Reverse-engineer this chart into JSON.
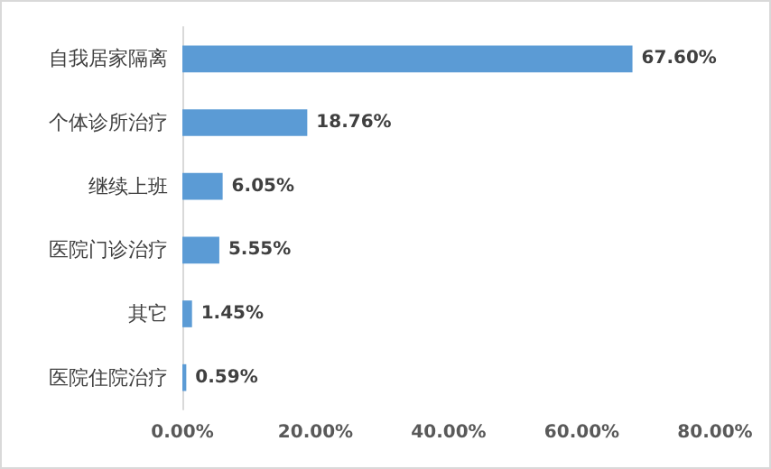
{
  "chart_data": {
    "type": "bar",
    "orientation": "horizontal",
    "categories": [
      "自我居家隔离",
      "个体诊所治疗",
      "继续上班",
      "医院门诊治疗",
      "其它",
      "医院住院治疗"
    ],
    "values": [
      67.6,
      18.76,
      6.05,
      5.55,
      1.45,
      0.59
    ],
    "value_labels": [
      "67.60%",
      "18.76%",
      "6.05%",
      "5.55%",
      "1.45%",
      "0.59%"
    ],
    "color": "#5b9bd5",
    "xlim": [
      0,
      80
    ],
    "xticks": [
      {
        "value": 0,
        "label": "0.00%"
      },
      {
        "value": 20,
        "label": "20.00%"
      },
      {
        "value": 40,
        "label": "40.00%"
      },
      {
        "value": 60,
        "label": "60.00%"
      },
      {
        "value": 80,
        "label": "80.00%"
      }
    ],
    "grid": false
  }
}
